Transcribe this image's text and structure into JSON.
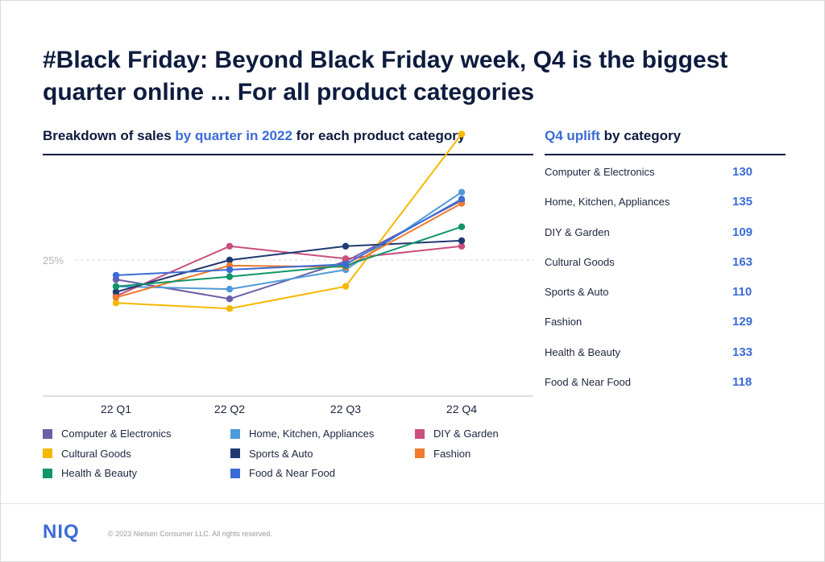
{
  "title": "#Black Friday: Beyond Black Friday week, Q4 is the biggest quarter online ... For all product categories",
  "left_subtitle": {
    "part1": "Breakdown of sales ",
    "part2": "by quarter in 2022",
    "part3": " for each product category"
  },
  "right_subtitle": {
    "part1": "Q4 uplift",
    "part2": " by category"
  },
  "chart_data": {
    "type": "line",
    "x": [
      "22 Q1",
      "22 Q2",
      "22 Q3",
      "22 Q4"
    ],
    "reference_line": {
      "value": 25,
      "label": "25%"
    },
    "ylim": [
      10,
      35
    ],
    "series": [
      {
        "name": "Computer & Electronics",
        "color": "#6b5ea8",
        "values": [
          23.6,
          22.2,
          24.9,
          29.3
        ]
      },
      {
        "name": "Home, Kitchen, Appliances",
        "color": "#4f9ad8",
        "values": [
          23.1,
          22.9,
          24.3,
          29.9
        ]
      },
      {
        "name": "DIY & Garden",
        "color": "#c94f7c",
        "values": [
          22.4,
          26.0,
          25.1,
          26.0
        ]
      },
      {
        "name": "Cultural Goods",
        "color": "#f5b800",
        "values": [
          21.9,
          21.5,
          23.1,
          34.1
        ]
      },
      {
        "name": "Sports & Auto",
        "color": "#1f3a73",
        "values": [
          22.7,
          25.0,
          26.0,
          26.4
        ]
      },
      {
        "name": "Fashion",
        "color": "#f07b2c",
        "values": [
          22.3,
          24.6,
          24.5,
          29.1
        ]
      },
      {
        "name": "Health & Beauty",
        "color": "#10956a",
        "values": [
          23.1,
          23.8,
          24.6,
          27.4
        ]
      },
      {
        "name": "Food & Near Food",
        "color": "#3b6bd6",
        "values": [
          23.9,
          24.3,
          24.7,
          29.4
        ]
      }
    ]
  },
  "uplift": [
    {
      "label": "Computer & Electronics",
      "value": "130"
    },
    {
      "label": "Home, Kitchen, Appliances",
      "value": "135"
    },
    {
      "label": "DIY & Garden",
      "value": "109"
    },
    {
      "label": "Cultural Goods",
      "value": "163"
    },
    {
      "label": "Sports & Auto",
      "value": "110"
    },
    {
      "label": "Fashion",
      "value": "129"
    },
    {
      "label": "Health & Beauty",
      "value": "133"
    },
    {
      "label": "Food & Near Food",
      "value": "118"
    }
  ],
  "footer": {
    "logo": "NIQ",
    "copyright": "© 2023 Nielsen Consumer LLC. All rights reserved."
  }
}
